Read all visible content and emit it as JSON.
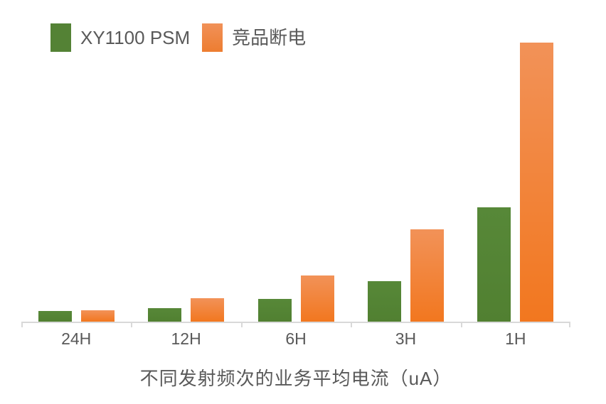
{
  "chart_data": {
    "type": "bar",
    "title": "不同发射频次的业务平均电流（uA）",
    "xlabel": "",
    "ylabel": "",
    "categories": [
      "24H",
      "12H",
      "6H",
      "3H",
      "1H"
    ],
    "series": [
      {
        "name": "XY1100 PSM",
        "color": "#548235",
        "values": [
          3.8,
          4.8,
          8.1,
          14.5,
          40.9
        ]
      },
      {
        "name": "竞品断电",
        "color": "#ED7D31",
        "gradient": [
          "#F29258",
          "#F2771F"
        ],
        "values": [
          4.1,
          8.4,
          16.5,
          33.0,
          100
        ]
      }
    ],
    "ylim": [
      0,
      105
    ],
    "units": "relative (no y-axis shown; values normalized so tallest bar = 100)",
    "grid": false,
    "y_axis_visible": false,
    "legend_position": "top-left",
    "axis_line_color": "#D9D9D9",
    "text_color": "#595959"
  }
}
